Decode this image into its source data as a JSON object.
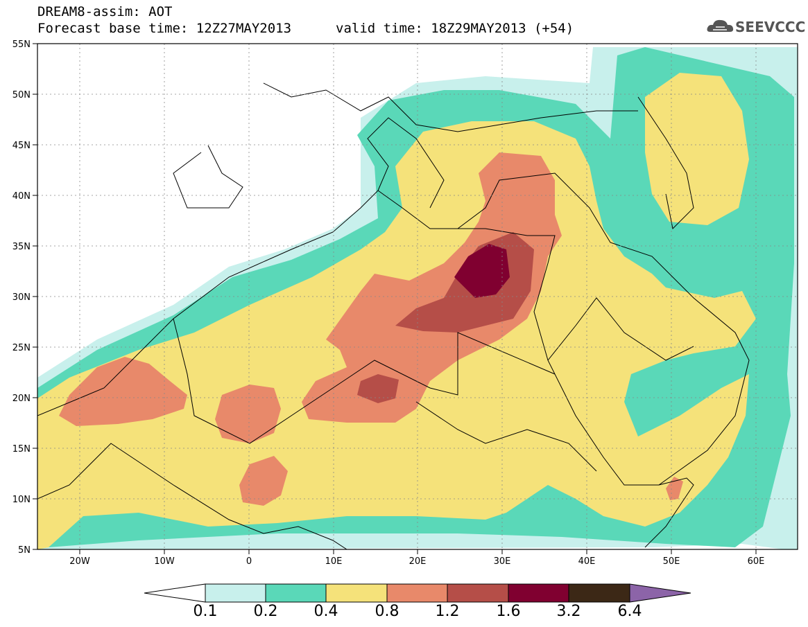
{
  "header": {
    "title": "DREAM8-assim: AOT",
    "base_time": "Forecast base time: 12Z27MAY2013",
    "valid_time": "valid time: 18Z29MAY2013 (+54)",
    "logo_text": "SEEVCCC"
  },
  "map": {
    "lon_range": [
      -25,
      65
    ],
    "lat_range": [
      5,
      55
    ],
    "lon_labels": [
      "20W",
      "10W",
      "0",
      "10E",
      "20E",
      "30E",
      "40E",
      "50E",
      "60E"
    ],
    "lat_labels": [
      "55N",
      "50N",
      "45N",
      "40N",
      "35N",
      "30N",
      "25N",
      "20N",
      "15N",
      "10N",
      "5N"
    ]
  },
  "colorbar": {
    "labels": [
      "0.1",
      "0.2",
      "0.4",
      "0.8",
      "1.2",
      "1.6",
      "3.2",
      "6.4"
    ],
    "colors": [
      "#c8f0ec",
      "#5ad8b8",
      "#f5e27a",
      "#e8896a",
      "#b54e48",
      "#800030",
      "#3c2816",
      "#8c64a8"
    ]
  }
}
